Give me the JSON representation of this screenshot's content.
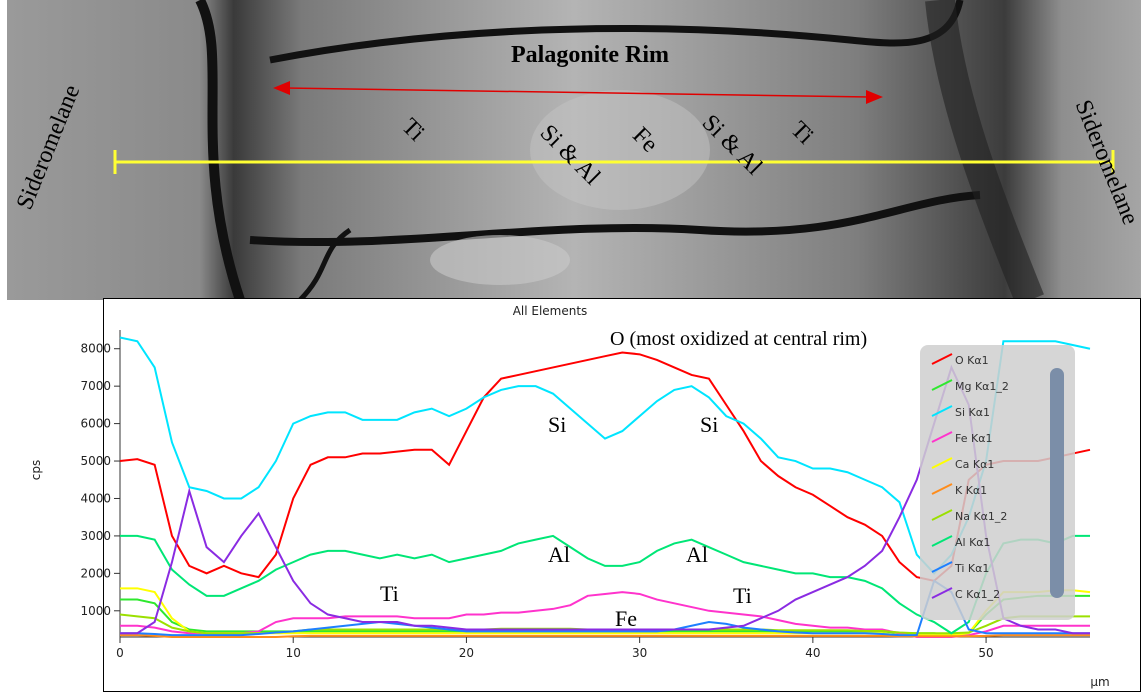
{
  "image": {
    "title": "Palagonite Rim",
    "labels": [
      "Sideromelane",
      "Sideromelane",
      "Ti",
      "Si & Al",
      "Fe",
      "Si & Al",
      "Ti"
    ]
  },
  "chart_data": {
    "type": "line",
    "title": "All Elements",
    "y_label": "cps",
    "x_label": "µm",
    "xlim": [
      0,
      56
    ],
    "ylim": [
      300,
      8500
    ],
    "xticks": [
      0,
      10,
      20,
      30,
      40,
      50
    ],
    "yticks": [
      1000,
      2000,
      3000,
      4000,
      5000,
      6000,
      7000,
      8000
    ],
    "annotations": [
      "O (most oxidized at central rim)",
      "Si",
      "Si",
      "Al",
      "Al",
      "Ti",
      "Ti",
      "Fe"
    ],
    "x": [
      0,
      1,
      2,
      3,
      4,
      5,
      6,
      7,
      8,
      9,
      10,
      11,
      12,
      13,
      14,
      15,
      16,
      17,
      18,
      19,
      20,
      21,
      22,
      23,
      24,
      25,
      26,
      27,
      28,
      29,
      30,
      31,
      32,
      33,
      34,
      35,
      36,
      37,
      38,
      39,
      40,
      41,
      42,
      43,
      44,
      45,
      46,
      47,
      48,
      49,
      50,
      51,
      52,
      53,
      54,
      55,
      56
    ],
    "series": [
      {
        "name": "O Kα1",
        "color": "#ff0000",
        "values": [
          5000,
          5050,
          4900,
          3000,
          2200,
          2000,
          2200,
          2000,
          1900,
          2500,
          4000,
          4900,
          5100,
          5100,
          5200,
          5200,
          5250,
          5300,
          5300,
          4900,
          5800,
          6700,
          7200,
          7300,
          7400,
          7500,
          7600,
          7700,
          7800,
          7900,
          7850,
          7700,
          7500,
          7300,
          7200,
          6500,
          5800,
          5000,
          4600,
          4300,
          4100,
          3800,
          3500,
          3300,
          3000,
          2300,
          1900,
          1800,
          2200,
          4500,
          4900,
          5000,
          5000,
          5000,
          5100,
          5200,
          5300
        ]
      },
      {
        "name": "Mg Kα1_2",
        "color": "#2ee82e",
        "values": [
          1300,
          1300,
          1200,
          700,
          500,
          450,
          450,
          450,
          450,
          450,
          450,
          450,
          450,
          450,
          450,
          450,
          450,
          450,
          450,
          450,
          450,
          450,
          450,
          450,
          450,
          450,
          450,
          450,
          450,
          450,
          450,
          450,
          450,
          450,
          450,
          450,
          450,
          450,
          450,
          450,
          450,
          450,
          450,
          450,
          450,
          400,
          400,
          400,
          350,
          400,
          900,
          1300,
          1350,
          1400,
          1400,
          1400,
          1400
        ]
      },
      {
        "name": "Si Kα1",
        "color": "#00e5ff",
        "values": [
          8300,
          8200,
          7500,
          5500,
          4300,
          4200,
          4000,
          4000,
          4300,
          5000,
          6000,
          6200,
          6300,
          6300,
          6100,
          6100,
          6100,
          6300,
          6400,
          6200,
          6400,
          6700,
          6900,
          7000,
          7000,
          6800,
          6400,
          6000,
          5600,
          5800,
          6200,
          6600,
          6900,
          7000,
          6700,
          6200,
          6000,
          5600,
          5100,
          5000,
          4800,
          4800,
          4700,
          4500,
          4300,
          3900,
          2500,
          2000,
          2500,
          3500,
          5000,
          8200,
          8200,
          8200,
          8200,
          8100,
          8000
        ]
      },
      {
        "name": "Fe Kα1",
        "color": "#ff33cc",
        "values": [
          600,
          600,
          550,
          450,
          400,
          400,
          400,
          400,
          450,
          700,
          800,
          800,
          800,
          850,
          850,
          850,
          850,
          800,
          800,
          800,
          900,
          900,
          950,
          950,
          1000,
          1050,
          1150,
          1400,
          1450,
          1500,
          1450,
          1300,
          1200,
          1100,
          1000,
          950,
          900,
          850,
          750,
          650,
          600,
          550,
          550,
          500,
          500,
          400,
          300,
          300,
          300,
          350,
          450,
          600,
          600,
          600,
          600,
          600,
          600
        ]
      },
      {
        "name": "Ca Kα1",
        "color": "#ffff00",
        "values": [
          1600,
          1600,
          1500,
          800,
          450,
          400,
          400,
          400,
          400,
          400,
          400,
          400,
          400,
          400,
          400,
          400,
          400,
          400,
          400,
          400,
          400,
          400,
          400,
          400,
          400,
          400,
          400,
          400,
          400,
          400,
          400,
          400,
          400,
          400,
          400,
          400,
          400,
          400,
          400,
          400,
          400,
          400,
          400,
          400,
          400,
          350,
          350,
          350,
          350,
          400,
          1000,
          1500,
          1500,
          1500,
          1550,
          1550,
          1500
        ]
      },
      {
        "name": "K Kα1",
        "color": "#ff8c1a",
        "values": [
          350,
          350,
          330,
          300,
          300,
          300,
          300,
          300,
          300,
          300,
          320,
          330,
          330,
          330,
          330,
          330,
          330,
          330,
          330,
          330,
          330,
          330,
          330,
          330,
          330,
          330,
          330,
          330,
          330,
          330,
          330,
          330,
          330,
          330,
          330,
          330,
          330,
          330,
          330,
          330,
          330,
          330,
          330,
          330,
          330,
          320,
          320,
          320,
          320,
          320,
          330,
          350,
          350,
          350,
          350,
          350,
          350
        ]
      },
      {
        "name": "Na Kα1_2",
        "color": "#9be000",
        "values": [
          900,
          850,
          800,
          550,
          450,
          400,
          400,
          400,
          400,
          420,
          450,
          500,
          500,
          500,
          500,
          500,
          500,
          500,
          500,
          500,
          500,
          500,
          520,
          520,
          520,
          520,
          520,
          500,
          500,
          500,
          500,
          500,
          500,
          500,
          500,
          500,
          500,
          500,
          480,
          480,
          480,
          480,
          480,
          460,
          460,
          420,
          400,
          400,
          400,
          420,
          600,
          800,
          850,
          850,
          850,
          850,
          850
        ]
      },
      {
        "name": "Al Kα1",
        "color": "#00e676",
        "values": [
          3000,
          3000,
          2900,
          2100,
          1700,
          1400,
          1400,
          1600,
          1800,
          2100,
          2300,
          2500,
          2600,
          2600,
          2500,
          2400,
          2500,
          2400,
          2500,
          2300,
          2400,
          2500,
          2600,
          2800,
          2900,
          3000,
          2700,
          2400,
          2200,
          2200,
          2300,
          2600,
          2800,
          2900,
          2700,
          2500,
          2300,
          2200,
          2100,
          2000,
          2000,
          1900,
          1900,
          1800,
          1600,
          1200,
          900,
          700,
          400,
          700,
          2000,
          2800,
          2900,
          2900,
          2800,
          3000,
          3000
        ]
      },
      {
        "name": "Ti Kα1",
        "color": "#1e7fff",
        "values": [
          400,
          400,
          380,
          350,
          350,
          350,
          350,
          350,
          380,
          420,
          450,
          500,
          550,
          600,
          650,
          700,
          650,
          600,
          550,
          500,
          450,
          450,
          450,
          450,
          450,
          450,
          450,
          450,
          450,
          450,
          450,
          450,
          500,
          600,
          700,
          650,
          550,
          500,
          450,
          420,
          400,
          400,
          400,
          400,
          380,
          350,
          350,
          1800,
          1500,
          500,
          400,
          400,
          400,
          400,
          400,
          400,
          400
        ]
      },
      {
        "name": "C Kα1_2",
        "color": "#8a2be2",
        "values": [
          400,
          400,
          700,
          2300,
          4200,
          2700,
          2300,
          3000,
          3600,
          2700,
          1800,
          1200,
          900,
          800,
          700,
          700,
          700,
          600,
          600,
          550,
          500,
          500,
          500,
          500,
          500,
          500,
          500,
          500,
          500,
          500,
          500,
          500,
          500,
          500,
          500,
          550,
          600,
          800,
          1000,
          1300,
          1500,
          1700,
          1900,
          2200,
          2600,
          3500,
          4500,
          6000,
          7500,
          6500,
          3000,
          800,
          600,
          500,
          500,
          400,
          400
        ]
      }
    ]
  }
}
